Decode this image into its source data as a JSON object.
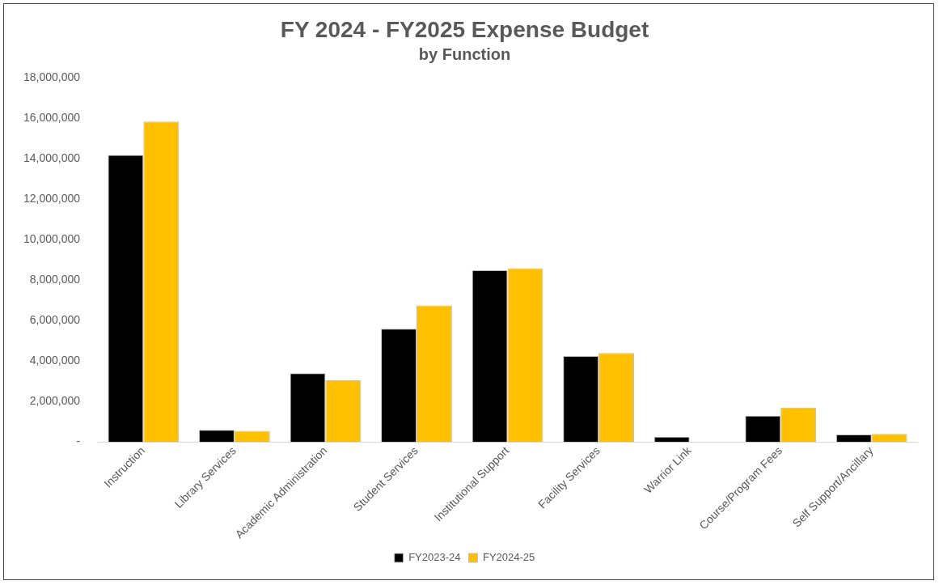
{
  "chart_data": {
    "type": "bar",
    "title": "FY 2024 - FY2025 Expense Budget",
    "subtitle": "by Function",
    "categories": [
      "Instruction",
      "Library Services",
      "Academic Administration",
      "Student Services",
      "Institutional Support",
      "Facility Services",
      "Warrior Link",
      "Course/Program Fees",
      "Self Support/Ancillary"
    ],
    "series": [
      {
        "name": "FY2023-24",
        "color": "#000000",
        "values": [
          14200000,
          600000,
          3400000,
          5600000,
          8500000,
          4250000,
          260000,
          1300000,
          370000
        ]
      },
      {
        "name": "FY2024-25",
        "color": "#ffc000",
        "values": [
          15850000,
          550000,
          3050000,
          6750000,
          8600000,
          4400000,
          0,
          1700000,
          400000
        ]
      }
    ],
    "ylim": [
      0,
      18000000
    ],
    "yticks": [
      {
        "value": 0,
        "label": "-"
      },
      {
        "value": 2000000,
        "label": "2,000,000"
      },
      {
        "value": 4000000,
        "label": "4,000,000"
      },
      {
        "value": 6000000,
        "label": "6,000,000"
      },
      {
        "value": 8000000,
        "label": "8,000,000"
      },
      {
        "value": 10000000,
        "label": "10,000,000"
      },
      {
        "value": 12000000,
        "label": "12,000,000"
      },
      {
        "value": 14000000,
        "label": "14,000,000"
      },
      {
        "value": 16000000,
        "label": "16,000,000"
      },
      {
        "value": 18000000,
        "label": "18,000,000"
      }
    ],
    "grid": false,
    "legend": "bottom"
  }
}
